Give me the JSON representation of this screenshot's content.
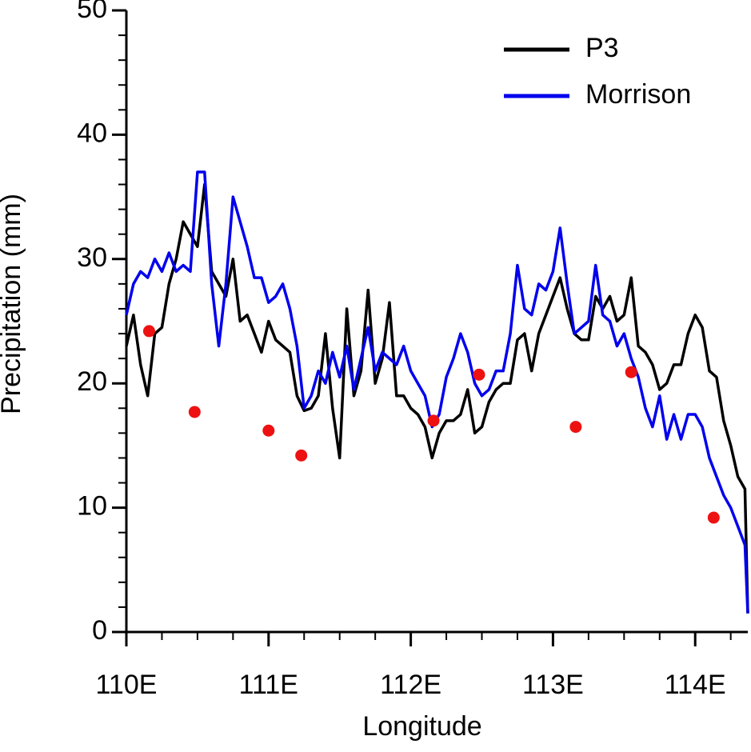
{
  "chart_data": {
    "type": "line",
    "xlabel": "Longitude",
    "ylabel": "Precipitation (mm)",
    "x": [
      110.0,
      110.05,
      110.1,
      110.15,
      110.2,
      110.25,
      110.3,
      110.35,
      110.4,
      110.45,
      110.5,
      110.55,
      110.6,
      110.65,
      110.7,
      110.75,
      110.8,
      110.85,
      110.9,
      110.95,
      111.0,
      111.05,
      111.1,
      111.15,
      111.2,
      111.25,
      111.3,
      111.35,
      111.4,
      111.45,
      111.5,
      111.55,
      111.6,
      111.65,
      111.7,
      111.75,
      111.8,
      111.85,
      111.9,
      111.95,
      112.0,
      112.05,
      112.1,
      112.15,
      112.2,
      112.25,
      112.3,
      112.35,
      112.4,
      112.45,
      112.5,
      112.55,
      112.6,
      112.65,
      112.7,
      112.75,
      112.8,
      112.85,
      112.9,
      112.95,
      113.0,
      113.05,
      113.1,
      113.15,
      113.2,
      113.25,
      113.3,
      113.35,
      113.4,
      113.45,
      113.5,
      113.55,
      113.6,
      113.65,
      113.7,
      113.75,
      113.8,
      113.85,
      113.9,
      113.95,
      114.0,
      114.05,
      114.1,
      114.15,
      114.2,
      114.25,
      114.3,
      114.35,
      114.37
    ],
    "series": [
      {
        "name": "P3",
        "color": "#000000",
        "values": [
          23,
          25.5,
          21.5,
          19,
          24,
          24.5,
          28,
          30,
          33,
          32,
          31,
          36,
          29,
          28,
          27,
          30,
          25,
          25.5,
          24,
          22.5,
          25,
          23.5,
          23,
          22.5,
          19,
          17.8,
          18,
          19,
          24,
          18,
          14,
          26,
          19,
          21,
          27.5,
          20,
          22,
          26.5,
          19,
          19,
          18,
          17.5,
          16.5,
          14,
          16,
          17,
          17,
          17.5,
          19.5,
          16,
          16.5,
          18.5,
          19.5,
          20,
          20,
          23.5,
          24,
          21,
          24,
          25.5,
          27,
          28.5,
          26,
          24,
          23.5,
          23.5,
          27,
          26,
          27,
          25,
          25.5,
          28.5,
          23,
          22.5,
          21.5,
          19.5,
          20,
          21.5,
          21.5,
          24,
          25.5,
          24.5,
          21,
          20.5,
          17,
          15,
          12.5,
          11.5,
          1.5
        ]
      },
      {
        "name": "Morrison",
        "color": "#0000ee",
        "values": [
          25.5,
          28,
          29,
          28.5,
          30,
          29,
          30.5,
          29,
          29.5,
          29,
          37,
          37,
          28,
          23,
          28,
          35,
          33,
          31,
          28.5,
          28.5,
          26.5,
          27,
          28,
          26,
          23,
          18,
          19,
          21,
          20,
          22.5,
          20.5,
          23,
          19.5,
          22,
          24.5,
          21,
          22.5,
          22,
          21.5,
          23,
          21,
          20,
          19,
          16.5,
          17.5,
          20.5,
          22,
          24,
          22.5,
          20,
          19,
          19.5,
          21,
          21,
          24,
          29.5,
          26,
          25.5,
          28,
          27.5,
          29,
          32.5,
          28,
          24,
          24.5,
          25,
          29.5,
          25.5,
          25,
          23,
          24,
          22,
          20.5,
          18,
          16.5,
          19,
          15.5,
          17.5,
          15.5,
          17.5,
          17.5,
          16.5,
          14,
          12.5,
          11,
          10,
          8.5,
          7,
          1.5
        ]
      }
    ],
    "points": {
      "color": "#ee1111",
      "x": [
        110.16,
        110.48,
        111.0,
        111.23,
        112.16,
        112.48,
        113.16,
        113.55,
        114.13
      ],
      "values": [
        24.2,
        17.7,
        16.2,
        14.2,
        17.0,
        20.7,
        16.5,
        20.9,
        9.2
      ]
    },
    "xlim": [
      110,
      114.37
    ],
    "ylim": [
      0,
      50
    ],
    "xticks": [
      {
        "value": 110,
        "label": "110E"
      },
      {
        "value": 111,
        "label": "111E"
      },
      {
        "value": 112,
        "label": "112E"
      },
      {
        "value": 113,
        "label": "113E"
      },
      {
        "value": 114,
        "label": "114E"
      }
    ],
    "xminorticks": [
      110.25,
      110.5,
      110.75,
      111.25,
      111.5,
      111.75,
      112.25,
      112.5,
      112.75,
      113.25,
      113.5,
      113.75,
      114.25
    ],
    "yticks": [
      0,
      10,
      20,
      30,
      40,
      50
    ],
    "yminorticks": [
      2,
      4,
      6,
      8,
      12,
      14,
      16,
      18,
      22,
      24,
      26,
      28,
      32,
      34,
      36,
      38,
      42,
      44,
      46,
      48
    ],
    "legend": "upper right"
  }
}
